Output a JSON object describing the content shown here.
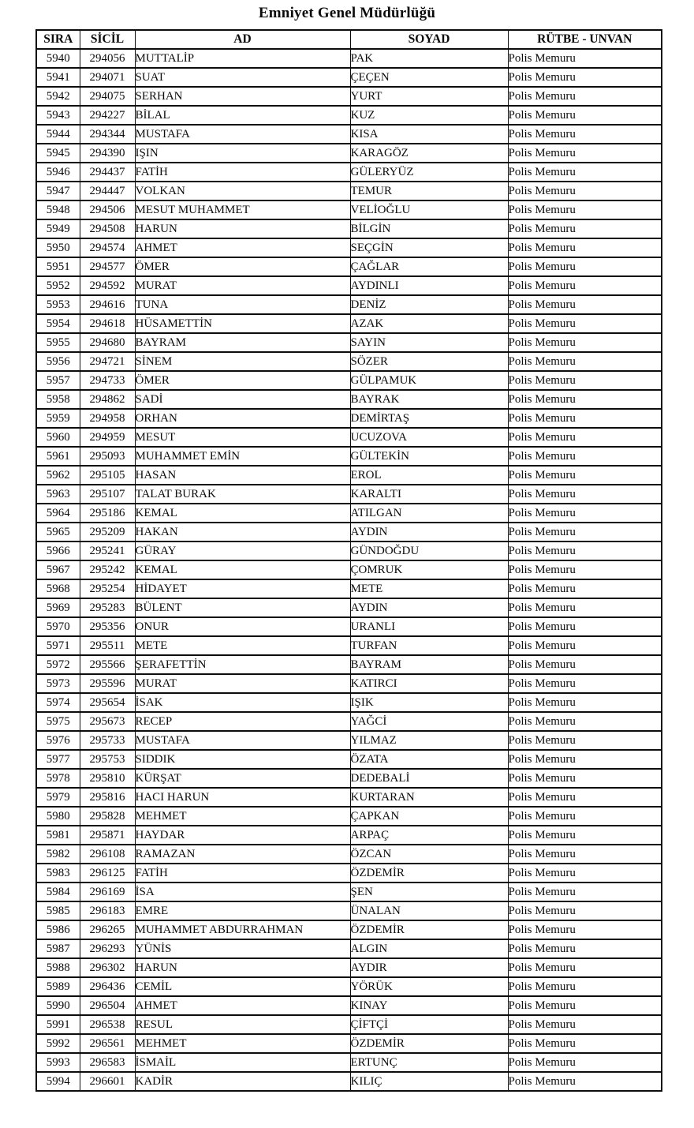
{
  "title": "Emniyet Genel Müdürlüğü",
  "table": {
    "headers": [
      "SIRA",
      "SİCİL",
      "AD",
      "SOYAD",
      "RÜTBE - UNVAN"
    ],
    "rows": [
      [
        "5940",
        "294056",
        "MUTTALİP",
        "PAK",
        "Polis Memuru"
      ],
      [
        "5941",
        "294071",
        "SUAT",
        "ÇEÇEN",
        "Polis Memuru"
      ],
      [
        "5942",
        "294075",
        "SERHAN",
        "YURT",
        "Polis Memuru"
      ],
      [
        "5943",
        "294227",
        "BİLAL",
        "KUZ",
        "Polis Memuru"
      ],
      [
        "5944",
        "294344",
        "MUSTAFA",
        "KISA",
        "Polis Memuru"
      ],
      [
        "5945",
        "294390",
        "IŞIN",
        "KARAGÖZ",
        "Polis Memuru"
      ],
      [
        "5946",
        "294437",
        "FATİH",
        "GÜLERYÜZ",
        "Polis Memuru"
      ],
      [
        "5947",
        "294447",
        "VOLKAN",
        "TEMUR",
        "Polis Memuru"
      ],
      [
        "5948",
        "294506",
        "MESUT MUHAMMET",
        "VELİOĞLU",
        "Polis Memuru"
      ],
      [
        "5949",
        "294508",
        "HARUN",
        "BİLGİN",
        "Polis Memuru"
      ],
      [
        "5950",
        "294574",
        "AHMET",
        "SEÇGİN",
        "Polis Memuru"
      ],
      [
        "5951",
        "294577",
        "ÖMER",
        "ÇAĞLAR",
        "Polis Memuru"
      ],
      [
        "5952",
        "294592",
        "MURAT",
        "AYDINLI",
        "Polis Memuru"
      ],
      [
        "5953",
        "294616",
        "TUNA",
        "DENİZ",
        "Polis Memuru"
      ],
      [
        "5954",
        "294618",
        "HÜSAMETTİN",
        "AZAK",
        "Polis Memuru"
      ],
      [
        "5955",
        "294680",
        "BAYRAM",
        "SAYIN",
        "Polis Memuru"
      ],
      [
        "5956",
        "294721",
        "SİNEM",
        "SÖZER",
        "Polis Memuru"
      ],
      [
        "5957",
        "294733",
        "ÖMER",
        "GÜLPAMUK",
        "Polis Memuru"
      ],
      [
        "5958",
        "294862",
        "SADİ",
        "BAYRAK",
        "Polis Memuru"
      ],
      [
        "5959",
        "294958",
        "ORHAN",
        "DEMİRTAŞ",
        "Polis Memuru"
      ],
      [
        "5960",
        "294959",
        "MESUT",
        "UCUZOVA",
        "Polis Memuru"
      ],
      [
        "5961",
        "295093",
        "MUHAMMET EMİN",
        "GÜLTEKİN",
        "Polis Memuru"
      ],
      [
        "5962",
        "295105",
        "HASAN",
        "EROL",
        "Polis Memuru"
      ],
      [
        "5963",
        "295107",
        "TALAT BURAK",
        "KARALTI",
        "Polis Memuru"
      ],
      [
        "5964",
        "295186",
        "KEMAL",
        "ATILGAN",
        "Polis Memuru"
      ],
      [
        "5965",
        "295209",
        "HAKAN",
        "AYDIN",
        "Polis Memuru"
      ],
      [
        "5966",
        "295241",
        "GÜRAY",
        "GÜNDOĞDU",
        "Polis Memuru"
      ],
      [
        "5967",
        "295242",
        "KEMAL",
        "ÇOMRUK",
        "Polis Memuru"
      ],
      [
        "5968",
        "295254",
        "HİDAYET",
        "METE",
        "Polis Memuru"
      ],
      [
        "5969",
        "295283",
        "BÜLENT",
        "AYDIN",
        "Polis Memuru"
      ],
      [
        "5970",
        "295356",
        "ONUR",
        "URANLI",
        "Polis Memuru"
      ],
      [
        "5971",
        "295511",
        "METE",
        "TURFAN",
        "Polis Memuru"
      ],
      [
        "5972",
        "295566",
        "ŞERAFETTİN",
        "BAYRAM",
        "Polis Memuru"
      ],
      [
        "5973",
        "295596",
        "MURAT",
        "KATIRCI",
        "Polis Memuru"
      ],
      [
        "5974",
        "295654",
        "İSAK",
        "IŞIK",
        "Polis Memuru"
      ],
      [
        "5975",
        "295673",
        "RECEP",
        "YAĞCİ",
        "Polis Memuru"
      ],
      [
        "5976",
        "295733",
        "MUSTAFA",
        "YILMAZ",
        "Polis Memuru"
      ],
      [
        "5977",
        "295753",
        "SIDDIK",
        "ÖZATA",
        "Polis Memuru"
      ],
      [
        "5978",
        "295810",
        "KÜRŞAT",
        "DEDEBALİ",
        "Polis Memuru"
      ],
      [
        "5979",
        "295816",
        "HACI HARUN",
        "KURTARAN",
        "Polis Memuru"
      ],
      [
        "5980",
        "295828",
        "MEHMET",
        "ÇAPKAN",
        "Polis Memuru"
      ],
      [
        "5981",
        "295871",
        "HAYDAR",
        "ARPAÇ",
        "Polis Memuru"
      ],
      [
        "5982",
        "296108",
        "RAMAZAN",
        "ÖZCAN",
        "Polis Memuru"
      ],
      [
        "5983",
        "296125",
        "FATİH",
        "ÖZDEMİR",
        "Polis Memuru"
      ],
      [
        "5984",
        "296169",
        "İSA",
        "ŞEN",
        "Polis Memuru"
      ],
      [
        "5985",
        "296183",
        "EMRE",
        "ÜNALAN",
        "Polis Memuru"
      ],
      [
        "5986",
        "296265",
        "MUHAMMET ABDURRAHMAN",
        "ÖZDEMİR",
        "Polis Memuru"
      ],
      [
        "5987",
        "296293",
        "YÜNİS",
        "ALGIN",
        "Polis Memuru"
      ],
      [
        "5988",
        "296302",
        "HARUN",
        "AYDIR",
        "Polis Memuru"
      ],
      [
        "5989",
        "296436",
        "CEMİL",
        "YÖRÜK",
        "Polis Memuru"
      ],
      [
        "5990",
        "296504",
        "AHMET",
        "KINAY",
        "Polis Memuru"
      ],
      [
        "5991",
        "296538",
        "RESUL",
        "ÇİFTÇİ",
        "Polis Memuru"
      ],
      [
        "5992",
        "296561",
        "MEHMET",
        "ÖZDEMİR",
        "Polis Memuru"
      ],
      [
        "5993",
        "296583",
        "İSMAİL",
        "ERTUNÇ",
        "Polis Memuru"
      ],
      [
        "5994",
        "296601",
        "KADİR",
        "KILIÇ",
        "Polis Memuru"
      ]
    ]
  }
}
